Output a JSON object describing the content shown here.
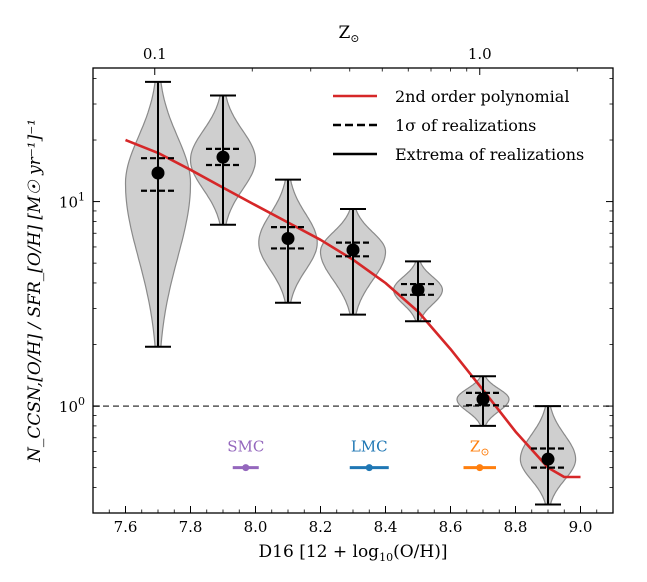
{
  "chart_data": {
    "type": "violin",
    "xlabel": "D16 [12 + log",
    "xlabel_sub": "10",
    "xlabel_tail": "(O/H)]",
    "ylabel": "N_CCSN,[O/H] / SFR_[O/H] [M☉ yr⁻¹]⁻¹",
    "top_axis_label": "Z",
    "top_axis_label_sub": "⊙",
    "xlim": [
      7.5,
      9.1
    ],
    "ylim": [
      0.3,
      45
    ],
    "yscale": "log",
    "xticks": [
      7.6,
      7.8,
      8.0,
      8.2,
      8.4,
      8.6,
      8.8,
      9.0
    ],
    "xtick_labels": [
      "7.6",
      "7.8",
      "8.0",
      "8.2",
      "8.4",
      "8.6",
      "8.8",
      "9.0"
    ],
    "yticks": [
      {
        "value": 1,
        "base": "10",
        "exp": "0"
      },
      {
        "value": 10,
        "base": "10",
        "exp": "1"
      }
    ],
    "top_ticks": [
      {
        "x": 7.69,
        "label": "0.1"
      },
      {
        "x": 8.69,
        "label": "1.0"
      }
    ],
    "reference_line_y": 1.0,
    "legend": {
      "position": "upper right",
      "entries": [
        {
          "label": "2nd order polynomial",
          "style": "solid-red"
        },
        {
          "label": "1σ of realizations",
          "style": "dashed-black"
        },
        {
          "label": "Extrema of realizations",
          "style": "solid-black"
        }
      ]
    },
    "bins": [
      {
        "x": 7.7,
        "median": 13.8,
        "sigma_low": 11.3,
        "sigma_high": 16.3,
        "min": 1.95,
        "max": 38.5,
        "widest_at": 12.3,
        "half_width": 0.1
      },
      {
        "x": 7.9,
        "median": 16.5,
        "sigma_low": 15.1,
        "sigma_high": 18.1,
        "min": 7.7,
        "max": 33.0,
        "widest_at": 16.0,
        "half_width": 0.1
      },
      {
        "x": 8.1,
        "median": 6.6,
        "sigma_low": 5.9,
        "sigma_high": 7.5,
        "min": 3.2,
        "max": 12.8,
        "widest_at": 6.3,
        "half_width": 0.09
      },
      {
        "x": 8.3,
        "median": 5.8,
        "sigma_low": 5.4,
        "sigma_high": 6.3,
        "min": 2.8,
        "max": 9.2,
        "widest_at": 5.7,
        "half_width": 0.1
      },
      {
        "x": 8.5,
        "median": 3.7,
        "sigma_low": 3.5,
        "sigma_high": 3.95,
        "min": 2.6,
        "max": 5.1,
        "widest_at": 3.7,
        "half_width": 0.075
      },
      {
        "x": 8.7,
        "median": 1.08,
        "sigma_low": 1.01,
        "sigma_high": 1.16,
        "min": 0.8,
        "max": 1.4,
        "widest_at": 1.08,
        "half_width": 0.08
      },
      {
        "x": 8.9,
        "median": 0.55,
        "sigma_low": 0.5,
        "sigma_high": 0.62,
        "min": 0.33,
        "max": 1.0,
        "widest_at": 0.55,
        "half_width": 0.085
      }
    ],
    "polynomial": {
      "name": "2nd order polynomial",
      "color": "#d62728",
      "x": [
        7.6,
        7.7,
        7.8,
        7.9,
        8.0,
        8.1,
        8.2,
        8.3,
        8.4,
        8.5,
        8.6,
        8.7,
        8.8,
        8.9,
        8.95,
        9.0
      ],
      "y": [
        20.0,
        17.3,
        14.3,
        11.7,
        9.6,
        7.9,
        6.5,
        5.2,
        4.0,
        2.9,
        1.9,
        1.2,
        0.75,
        0.5,
        0.45,
        0.45
      ]
    },
    "reference_points": [
      {
        "label": "SMC",
        "x": 7.97,
        "xerr": 0.04,
        "y": 0.5,
        "color": "#9467bd"
      },
      {
        "label": "LMC",
        "x": 8.35,
        "xerr": 0.06,
        "y": 0.5,
        "color": "#1f77b4"
      },
      {
        "label": "Z",
        "label_sub": "⊙",
        "x": 8.69,
        "xerr": 0.05,
        "y": 0.5,
        "color": "#ff7f0e"
      }
    ],
    "colors": {
      "violin_fill": "#cfcfcf",
      "violin_edge": "#8a8a8a",
      "reference_line": "#555555"
    }
  }
}
